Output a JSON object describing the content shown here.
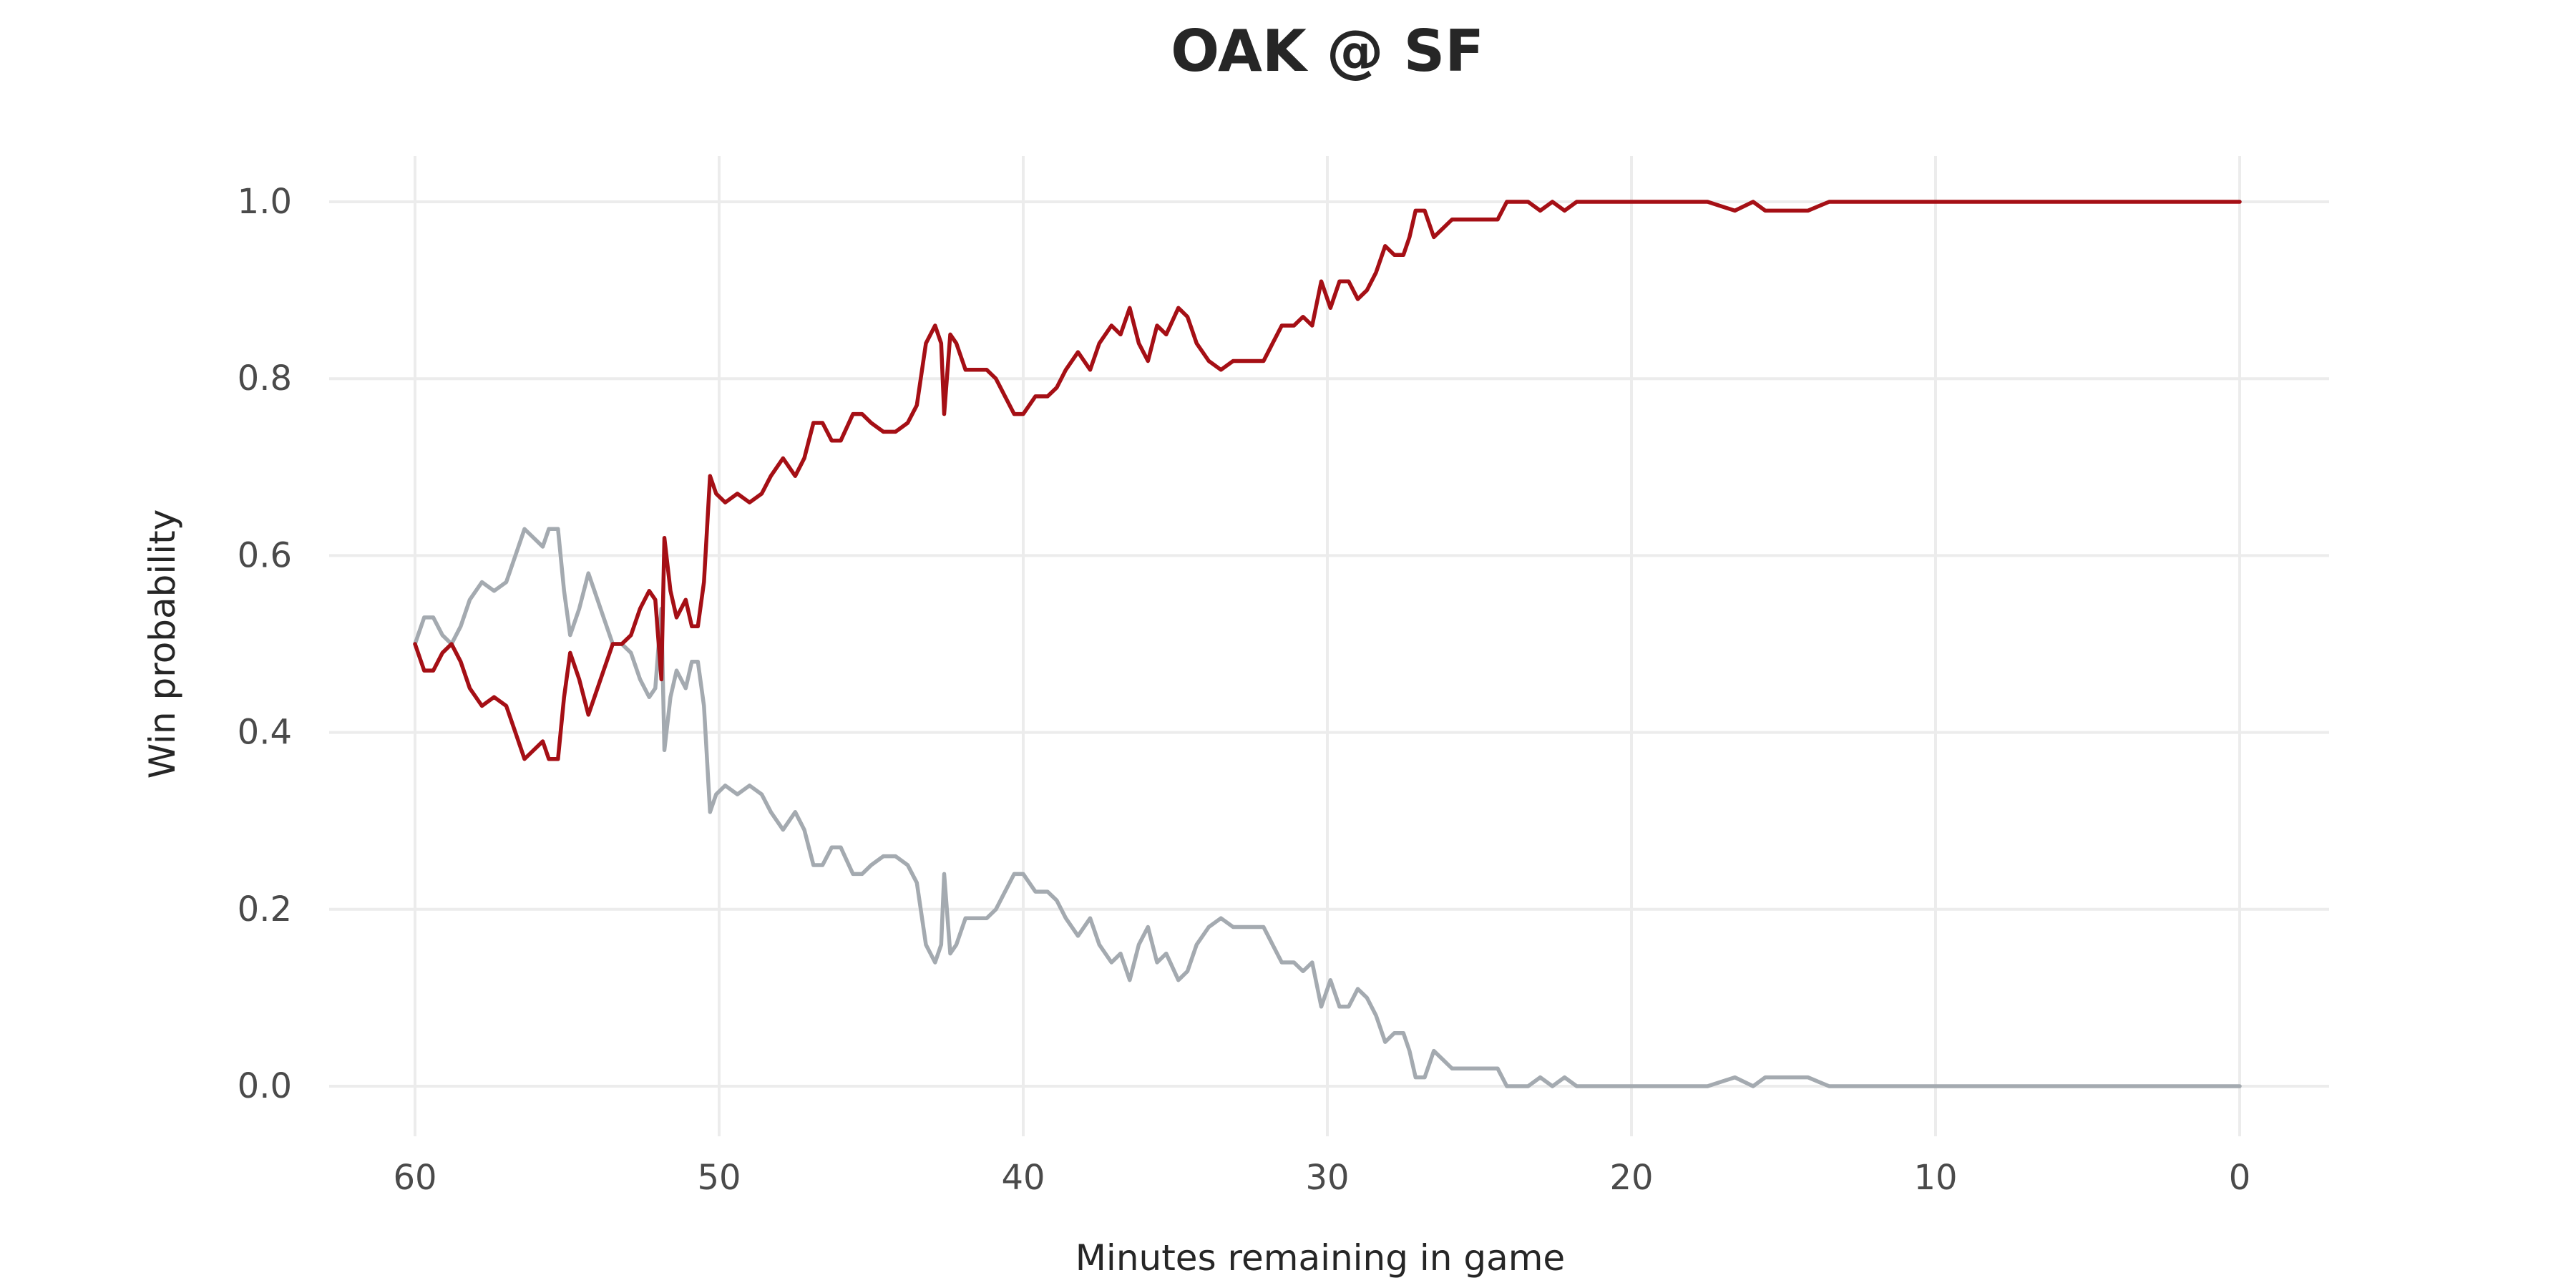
{
  "chart_data": {
    "type": "line",
    "title": "OAK @ SF",
    "xlabel": "Minutes remaining in game",
    "ylabel": "Win probability",
    "xlim": [
      60,
      0
    ],
    "ylim": [
      0,
      1
    ],
    "x_reversed": true,
    "grid": true,
    "legend": "none",
    "xticks": [
      60,
      50,
      40,
      30,
      20,
      10,
      0
    ],
    "yticks": [
      0.0,
      0.2,
      0.4,
      0.6,
      0.8,
      1.0
    ],
    "xtick_labels": [
      "60",
      "50",
      "40",
      "30",
      "20",
      "10",
      "0"
    ],
    "ytick_labels": [
      "0.0",
      "0.2",
      "0.4",
      "0.6",
      "0.8",
      "1.0"
    ],
    "series": [
      {
        "color": "#a50f15",
        "points": [
          [
            60.0,
            0.5
          ],
          [
            59.7,
            0.47
          ],
          [
            59.4,
            0.47
          ],
          [
            59.1,
            0.49
          ],
          [
            58.8,
            0.5
          ],
          [
            58.5,
            0.48
          ],
          [
            58.2,
            0.45
          ],
          [
            57.8,
            0.43
          ],
          [
            57.4,
            0.44
          ],
          [
            57.0,
            0.43
          ],
          [
            56.7,
            0.4
          ],
          [
            56.4,
            0.37
          ],
          [
            56.1,
            0.38
          ],
          [
            55.8,
            0.39
          ],
          [
            55.6,
            0.37
          ],
          [
            55.3,
            0.37
          ],
          [
            55.1,
            0.44
          ],
          [
            54.9,
            0.49
          ],
          [
            54.6,
            0.46
          ],
          [
            54.3,
            0.42
          ],
          [
            54.1,
            0.44
          ],
          [
            53.8,
            0.47
          ],
          [
            53.5,
            0.5
          ],
          [
            53.2,
            0.5
          ],
          [
            52.9,
            0.51
          ],
          [
            52.6,
            0.54
          ],
          [
            52.3,
            0.56
          ],
          [
            52.1,
            0.55
          ],
          [
            51.9,
            0.46
          ],
          [
            51.8,
            0.62
          ],
          [
            51.6,
            0.56
          ],
          [
            51.4,
            0.53
          ],
          [
            51.1,
            0.55
          ],
          [
            50.9,
            0.52
          ],
          [
            50.7,
            0.52
          ],
          [
            50.5,
            0.57
          ],
          [
            50.3,
            0.69
          ],
          [
            50.1,
            0.67
          ],
          [
            49.8,
            0.66
          ],
          [
            49.4,
            0.67
          ],
          [
            49.0,
            0.66
          ],
          [
            48.6,
            0.67
          ],
          [
            48.3,
            0.69
          ],
          [
            47.9,
            0.71
          ],
          [
            47.5,
            0.69
          ],
          [
            47.2,
            0.71
          ],
          [
            46.9,
            0.75
          ],
          [
            46.6,
            0.75
          ],
          [
            46.3,
            0.73
          ],
          [
            46.0,
            0.73
          ],
          [
            45.6,
            0.76
          ],
          [
            45.3,
            0.76
          ],
          [
            45.0,
            0.75
          ],
          [
            44.6,
            0.74
          ],
          [
            44.2,
            0.74
          ],
          [
            43.8,
            0.75
          ],
          [
            43.5,
            0.77
          ],
          [
            43.2,
            0.84
          ],
          [
            42.9,
            0.86
          ],
          [
            42.7,
            0.84
          ],
          [
            42.6,
            0.76
          ],
          [
            42.4,
            0.85
          ],
          [
            42.2,
            0.84
          ],
          [
            41.9,
            0.81
          ],
          [
            41.6,
            0.81
          ],
          [
            41.2,
            0.81
          ],
          [
            40.9,
            0.8
          ],
          [
            40.6,
            0.78
          ],
          [
            40.3,
            0.76
          ],
          [
            40.0,
            0.76
          ],
          [
            39.6,
            0.78
          ],
          [
            39.2,
            0.78
          ],
          [
            38.9,
            0.79
          ],
          [
            38.6,
            0.81
          ],
          [
            38.2,
            0.83
          ],
          [
            37.8,
            0.81
          ],
          [
            37.5,
            0.84
          ],
          [
            37.1,
            0.86
          ],
          [
            36.8,
            0.85
          ],
          [
            36.5,
            0.88
          ],
          [
            36.2,
            0.84
          ],
          [
            35.9,
            0.82
          ],
          [
            35.6,
            0.86
          ],
          [
            35.3,
            0.85
          ],
          [
            34.9,
            0.88
          ],
          [
            34.6,
            0.87
          ],
          [
            34.3,
            0.84
          ],
          [
            33.9,
            0.82
          ],
          [
            33.5,
            0.81
          ],
          [
            33.1,
            0.82
          ],
          [
            32.8,
            0.82
          ],
          [
            32.4,
            0.82
          ],
          [
            32.1,
            0.82
          ],
          [
            31.8,
            0.84
          ],
          [
            31.5,
            0.86
          ],
          [
            31.1,
            0.86
          ],
          [
            30.8,
            0.87
          ],
          [
            30.5,
            0.86
          ],
          [
            30.2,
            0.91
          ],
          [
            29.9,
            0.88
          ],
          [
            29.6,
            0.91
          ],
          [
            29.3,
            0.91
          ],
          [
            29.0,
            0.89
          ],
          [
            28.7,
            0.9
          ],
          [
            28.4,
            0.92
          ],
          [
            28.1,
            0.95
          ],
          [
            27.8,
            0.94
          ],
          [
            27.5,
            0.94
          ],
          [
            27.3,
            0.96
          ],
          [
            27.1,
            0.99
          ],
          [
            26.8,
            0.99
          ],
          [
            26.5,
            0.96
          ],
          [
            26.2,
            0.97
          ],
          [
            25.9,
            0.98
          ],
          [
            25.5,
            0.98
          ],
          [
            25.1,
            0.98
          ],
          [
            24.7,
            0.98
          ],
          [
            24.4,
            0.98
          ],
          [
            24.1,
            1.0
          ],
          [
            23.8,
            1.0
          ],
          [
            23.4,
            1.0
          ],
          [
            23.0,
            0.99
          ],
          [
            22.6,
            1.0
          ],
          [
            22.2,
            0.99
          ],
          [
            21.8,
            1.0
          ],
          [
            21.2,
            1.0
          ],
          [
            20.5,
            1.0
          ],
          [
            20.0,
            1.0
          ],
          [
            19.3,
            1.0
          ],
          [
            18.5,
            1.0
          ],
          [
            17.5,
            1.0
          ],
          [
            16.6,
            0.99
          ],
          [
            16.0,
            1.0
          ],
          [
            15.6,
            0.99
          ],
          [
            15.2,
            0.99
          ],
          [
            14.8,
            0.99
          ],
          [
            14.2,
            0.99
          ],
          [
            13.5,
            1.0
          ],
          [
            12.8,
            1.0
          ],
          [
            12.0,
            1.0
          ],
          [
            11.2,
            1.0
          ],
          [
            10.5,
            1.0
          ],
          [
            9.5,
            1.0
          ],
          [
            8.0,
            1.0
          ],
          [
            6.0,
            1.0
          ],
          [
            4.0,
            1.0
          ],
          [
            2.0,
            1.0
          ],
          [
            0.0,
            1.0
          ]
        ]
      },
      {
        "color": "#a4aab0",
        "points": [
          [
            60.0,
            0.5
          ],
          [
            59.7,
            0.53
          ],
          [
            59.4,
            0.53
          ],
          [
            59.1,
            0.51
          ],
          [
            58.8,
            0.5
          ],
          [
            58.5,
            0.52
          ],
          [
            58.2,
            0.55
          ],
          [
            57.8,
            0.57
          ],
          [
            57.4,
            0.56
          ],
          [
            57.0,
            0.57
          ],
          [
            56.7,
            0.6
          ],
          [
            56.4,
            0.63
          ],
          [
            56.1,
            0.62
          ],
          [
            55.8,
            0.61
          ],
          [
            55.6,
            0.63
          ],
          [
            55.3,
            0.63
          ],
          [
            55.1,
            0.56
          ],
          [
            54.9,
            0.51
          ],
          [
            54.6,
            0.54
          ],
          [
            54.3,
            0.58
          ],
          [
            54.1,
            0.56
          ],
          [
            53.8,
            0.53
          ],
          [
            53.5,
            0.5
          ],
          [
            53.2,
            0.5
          ],
          [
            52.9,
            0.49
          ],
          [
            52.6,
            0.46
          ],
          [
            52.3,
            0.44
          ],
          [
            52.1,
            0.45
          ],
          [
            51.9,
            0.54
          ],
          [
            51.8,
            0.38
          ],
          [
            51.6,
            0.44
          ],
          [
            51.4,
            0.47
          ],
          [
            51.1,
            0.45
          ],
          [
            50.9,
            0.48
          ],
          [
            50.7,
            0.48
          ],
          [
            50.5,
            0.43
          ],
          [
            50.3,
            0.31
          ],
          [
            50.1,
            0.33
          ],
          [
            49.8,
            0.34
          ],
          [
            49.4,
            0.33
          ],
          [
            49.0,
            0.34
          ],
          [
            48.6,
            0.33
          ],
          [
            48.3,
            0.31
          ],
          [
            47.9,
            0.29
          ],
          [
            47.5,
            0.31
          ],
          [
            47.2,
            0.29
          ],
          [
            46.9,
            0.25
          ],
          [
            46.6,
            0.25
          ],
          [
            46.3,
            0.27
          ],
          [
            46.0,
            0.27
          ],
          [
            45.6,
            0.24
          ],
          [
            45.3,
            0.24
          ],
          [
            45.0,
            0.25
          ],
          [
            44.6,
            0.26
          ],
          [
            44.2,
            0.26
          ],
          [
            43.8,
            0.25
          ],
          [
            43.5,
            0.23
          ],
          [
            43.2,
            0.16
          ],
          [
            42.9,
            0.14
          ],
          [
            42.7,
            0.16
          ],
          [
            42.6,
            0.24
          ],
          [
            42.4,
            0.15
          ],
          [
            42.2,
            0.16
          ],
          [
            41.9,
            0.19
          ],
          [
            41.6,
            0.19
          ],
          [
            41.2,
            0.19
          ],
          [
            40.9,
            0.2
          ],
          [
            40.6,
            0.22
          ],
          [
            40.3,
            0.24
          ],
          [
            40.0,
            0.24
          ],
          [
            39.6,
            0.22
          ],
          [
            39.2,
            0.22
          ],
          [
            38.9,
            0.21
          ],
          [
            38.6,
            0.19
          ],
          [
            38.2,
            0.17
          ],
          [
            37.8,
            0.19
          ],
          [
            37.5,
            0.16
          ],
          [
            37.1,
            0.14
          ],
          [
            36.8,
            0.15
          ],
          [
            36.5,
            0.12
          ],
          [
            36.2,
            0.16
          ],
          [
            35.9,
            0.18
          ],
          [
            35.6,
            0.14
          ],
          [
            35.3,
            0.15
          ],
          [
            34.9,
            0.12
          ],
          [
            34.6,
            0.13
          ],
          [
            34.3,
            0.16
          ],
          [
            33.9,
            0.18
          ],
          [
            33.5,
            0.19
          ],
          [
            33.1,
            0.18
          ],
          [
            32.8,
            0.18
          ],
          [
            32.4,
            0.18
          ],
          [
            32.1,
            0.18
          ],
          [
            31.8,
            0.16
          ],
          [
            31.5,
            0.14
          ],
          [
            31.1,
            0.14
          ],
          [
            30.8,
            0.13
          ],
          [
            30.5,
            0.14
          ],
          [
            30.2,
            0.09
          ],
          [
            29.9,
            0.12
          ],
          [
            29.6,
            0.09
          ],
          [
            29.3,
            0.09
          ],
          [
            29.0,
            0.11
          ],
          [
            28.7,
            0.1
          ],
          [
            28.4,
            0.08
          ],
          [
            28.1,
            0.05
          ],
          [
            27.8,
            0.06
          ],
          [
            27.5,
            0.06
          ],
          [
            27.3,
            0.04
          ],
          [
            27.1,
            0.01
          ],
          [
            26.8,
            0.01
          ],
          [
            26.5,
            0.04
          ],
          [
            26.2,
            0.03
          ],
          [
            25.9,
            0.02
          ],
          [
            25.5,
            0.02
          ],
          [
            25.1,
            0.02
          ],
          [
            24.7,
            0.02
          ],
          [
            24.4,
            0.02
          ],
          [
            24.1,
            0.0
          ],
          [
            23.8,
            0.0
          ],
          [
            23.4,
            0.0
          ],
          [
            23.0,
            0.01
          ],
          [
            22.6,
            0.0
          ],
          [
            22.2,
            0.01
          ],
          [
            21.8,
            0.0
          ],
          [
            21.2,
            0.0
          ],
          [
            20.5,
            0.0
          ],
          [
            20.0,
            0.0
          ],
          [
            19.3,
            0.0
          ],
          [
            18.5,
            0.0
          ],
          [
            17.5,
            0.0
          ],
          [
            16.6,
            0.01
          ],
          [
            16.0,
            0.0
          ],
          [
            15.6,
            0.01
          ],
          [
            15.2,
            0.01
          ],
          [
            14.8,
            0.01
          ],
          [
            14.2,
            0.01
          ],
          [
            13.5,
            0.0
          ],
          [
            12.8,
            0.0
          ],
          [
            12.0,
            0.0
          ],
          [
            11.2,
            0.0
          ],
          [
            10.5,
            0.0
          ],
          [
            9.5,
            0.0
          ],
          [
            8.0,
            0.0
          ],
          [
            6.0,
            0.0
          ],
          [
            4.0,
            0.0
          ],
          [
            2.0,
            0.0
          ],
          [
            0.0,
            0.0
          ]
        ]
      }
    ]
  }
}
